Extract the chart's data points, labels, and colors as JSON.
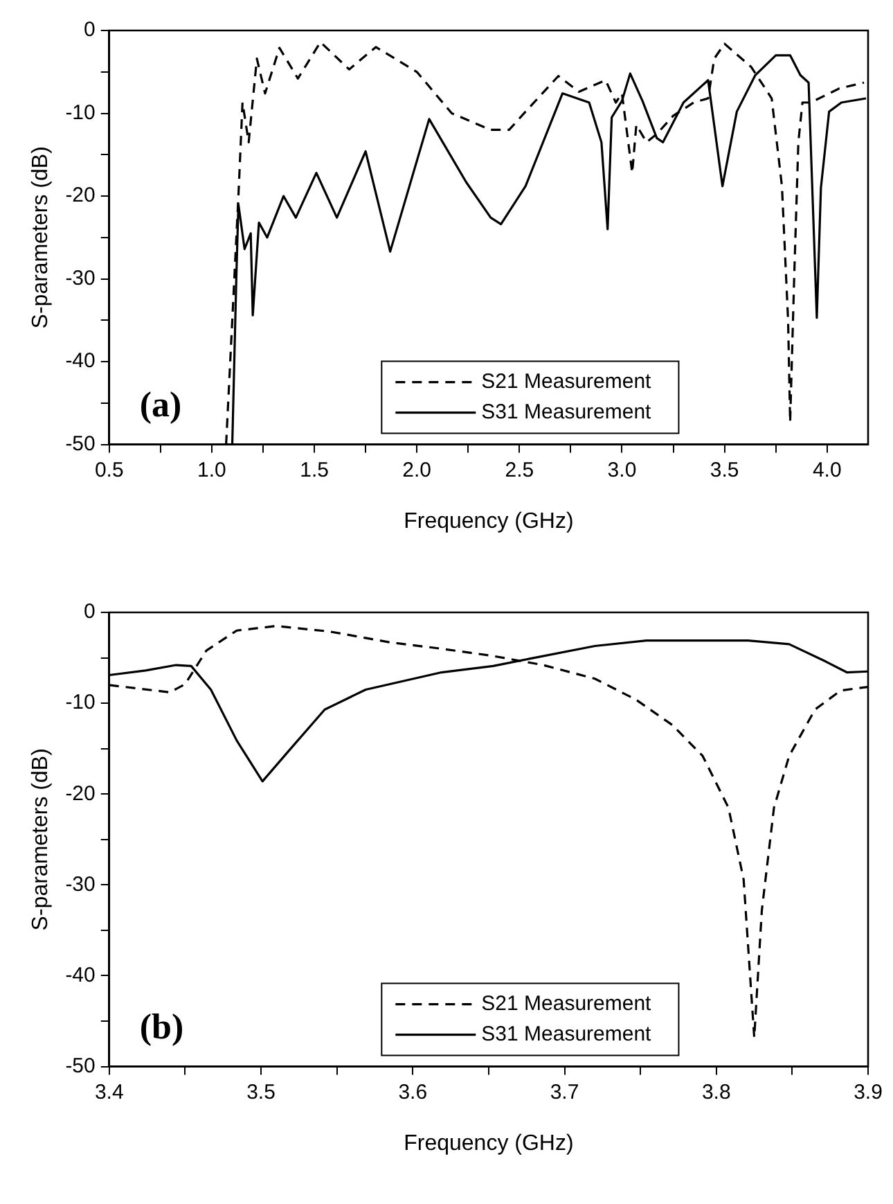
{
  "chart_data": [
    {
      "type": "line",
      "xlabel": "Frequency (GHz)",
      "ylabel": "S-parameters (dB)",
      "annotations": [
        "(a)"
      ],
      "legend": "bottom",
      "grid": false,
      "marker": "none",
      "xlim": [
        0.5,
        4.2
      ],
      "ylim": [
        -50,
        0
      ],
      "xticks": [
        0.5,
        {
          "value": 0.75,
          "label": null
        },
        {
          "value": 1,
          "label": "1.0"
        },
        {
          "value": 1.25,
          "label": null
        },
        1.5,
        {
          "value": 1.75,
          "label": null
        },
        {
          "value": 2,
          "label": "2.0"
        },
        {
          "value": 2.25,
          "label": null
        },
        2.5,
        {
          "value": 2.75,
          "label": null
        },
        {
          "value": 3,
          "label": "3.0"
        },
        {
          "value": 3.25,
          "label": null
        },
        3.5,
        {
          "value": 3.75,
          "label": null
        },
        {
          "value": 4,
          "label": "4.0"
        }
      ],
      "yticks": [
        -50,
        {
          "value": -45,
          "label": null
        },
        -40,
        {
          "value": -35,
          "label": null
        },
        -30,
        {
          "value": -25,
          "label": null
        },
        -20,
        {
          "value": -15,
          "label": null
        },
        -10,
        {
          "value": -5,
          "label": null
        },
        0
      ],
      "series": [
        {
          "name": "S21 Measurement",
          "color": "#000000",
          "line_style": "dashed",
          "x": [
            1.07,
            1.13,
            1.15,
            1.18,
            1.22,
            1.26,
            1.33,
            1.42,
            1.53,
            1.67,
            1.8,
            2.0,
            2.17,
            2.36,
            2.45,
            2.53,
            2.69,
            2.79,
            2.92,
            2.97,
            3.0,
            3.05,
            3.07,
            3.12,
            3.17,
            3.25,
            3.35,
            3.42,
            3.45,
            3.5,
            3.63,
            3.73,
            3.78,
            3.81,
            3.82,
            3.84,
            3.86,
            3.88,
            3.92,
            4.06,
            4.18
          ],
          "values": [
            -50,
            -20,
            -8.7,
            -13.5,
            -3.4,
            -7.6,
            -2.1,
            -5.8,
            -1.4,
            -4.7,
            -2,
            -5,
            -10,
            -12,
            -12,
            -9.8,
            -5.5,
            -7.4,
            -6,
            -8.7,
            -7.6,
            -17.2,
            -11.4,
            -13.5,
            -12.5,
            -10.3,
            -8.7,
            -8.2,
            -3.4,
            -1.6,
            -4.4,
            -8.2,
            -18.8,
            -35,
            -47.3,
            -29.6,
            -13.5,
            -8.7,
            -8.7,
            -7,
            -6.3
          ]
        },
        {
          "name": "S31 Measurement",
          "color": "#000000",
          "line_style": "solid",
          "x": [
            1.1,
            1.12,
            1.13,
            1.16,
            1.19,
            1.2,
            1.23,
            1.27,
            1.35,
            1.41,
            1.51,
            1.61,
            1.75,
            1.87,
            2.06,
            2.24,
            2.36,
            2.41,
            2.53,
            2.71,
            2.84,
            2.9,
            2.93,
            2.95,
            3.0,
            3.04,
            3.1,
            3.17,
            3.2,
            3.3,
            3.42,
            3.49,
            3.56,
            3.65,
            3.75,
            3.82,
            3.87,
            3.91,
            3.95,
            3.97,
            4.01,
            4.07,
            4.19
          ],
          "values": [
            -50,
            -29.6,
            -21,
            -26.4,
            -24.5,
            -34.4,
            -23.2,
            -25,
            -20,
            -22.6,
            -17.2,
            -22.6,
            -14.6,
            -26.7,
            -10.7,
            -18.3,
            -22.6,
            -23.4,
            -18.8,
            -7.6,
            -8.7,
            -13.5,
            -24,
            -10.5,
            -8.5,
            -5.2,
            -8.5,
            -13,
            -13.5,
            -8.7,
            -6,
            -18.8,
            -9.8,
            -5.4,
            -3,
            -3,
            -5.4,
            -6.3,
            -34.7,
            -19,
            -9.8,
            -8.7,
            -8.2
          ]
        }
      ]
    },
    {
      "type": "line",
      "xlabel": "Frequency (GHz)",
      "ylabel": "S-parameters (dB)",
      "annotations": [
        "(b)"
      ],
      "legend": "bottom",
      "grid": false,
      "marker": "none",
      "xlim": [
        3.4,
        3.9
      ],
      "ylim": [
        -50,
        0
      ],
      "xticks": [
        3.4,
        {
          "value": 3.45,
          "label": null
        },
        3.5,
        {
          "value": 3.55,
          "label": null
        },
        3.6,
        {
          "value": 3.65,
          "label": null
        },
        3.7,
        {
          "value": 3.75,
          "label": null
        },
        3.8,
        {
          "value": 3.85,
          "label": null
        },
        3.9
      ],
      "yticks": [
        -50,
        {
          "value": -45,
          "label": null
        },
        -40,
        {
          "value": -35,
          "label": null
        },
        -30,
        {
          "value": -25,
          "label": null
        },
        -20,
        {
          "value": -15,
          "label": null
        },
        -10,
        {
          "value": -5,
          "label": null
        },
        0
      ],
      "series": [
        {
          "name": "S21 Measurement",
          "color": "#000000",
          "line_style": "dashed",
          "x": [
            3.4,
            3.44,
            3.45,
            3.464,
            3.484,
            3.51,
            3.545,
            3.585,
            3.619,
            3.653,
            3.686,
            3.72,
            3.747,
            3.771,
            3.791,
            3.808,
            3.818,
            3.825,
            3.83,
            3.838,
            3.848,
            3.865,
            3.882,
            3.9
          ],
          "values": [
            -8,
            -8.8,
            -7.9,
            -4.2,
            -2,
            -1.5,
            -2.1,
            -3.3,
            -4,
            -4.8,
            -5.8,
            -7.3,
            -9.6,
            -12.4,
            -15.8,
            -21.5,
            -29.4,
            -46.8,
            -32.8,
            -21.5,
            -15.8,
            -10.7,
            -8.6,
            -8.2
          ]
        },
        {
          "name": "S31 Measurement",
          "color": "#000000",
          "line_style": "solid",
          "x": [
            3.4,
            3.424,
            3.444,
            3.454,
            3.467,
            3.484,
            3.501,
            3.518,
            3.542,
            3.569,
            3.619,
            3.653,
            3.677,
            3.72,
            3.754,
            3.821,
            3.848,
            3.872,
            3.886,
            3.9
          ],
          "values": [
            -6.9,
            -6.4,
            -5.8,
            -5.9,
            -8.5,
            -14.1,
            -18.6,
            -15.3,
            -10.7,
            -8.5,
            -6.6,
            -5.9,
            -5.1,
            -3.7,
            -3.1,
            -3.1,
            -3.5,
            -5.4,
            -6.6,
            -6.5
          ]
        }
      ]
    }
  ]
}
